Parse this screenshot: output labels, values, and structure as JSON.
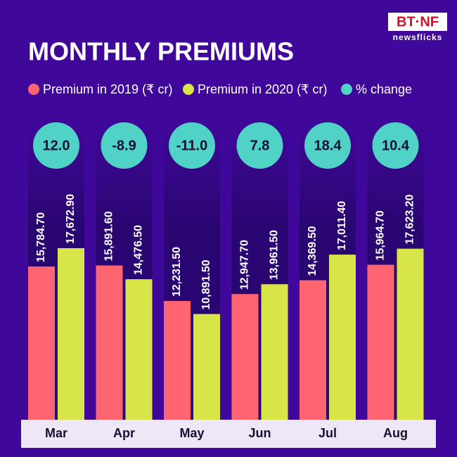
{
  "logo": {
    "brand": "BT·NF",
    "sub": "newsflicks"
  },
  "chart_data": {
    "type": "bar",
    "title": "MONTHLY PREMIUMS",
    "categories": [
      "Mar",
      "Apr",
      "May",
      "Jun",
      "Jul",
      "Aug"
    ],
    "series": [
      {
        "name": "Premium in 2019 (₹ cr)",
        "color": "#ff6570",
        "values": [
          15784.7,
          15891.6,
          12231.5,
          12947.7,
          14369.5,
          15964.7
        ],
        "value_labels": [
          "15,784.70",
          "15,891.60",
          "12,231.50",
          "12,947.70",
          "14,369.50",
          "15,964.70"
        ]
      },
      {
        "name": "Premium in 2020 (₹ cr)",
        "color": "#d7e548",
        "values": [
          17672.9,
          14476.5,
          10891.5,
          13961.5,
          17011.4,
          17623.2
        ],
        "value_labels": [
          "17,672.90",
          "14,476.50",
          "10,891.50",
          "13,961.50",
          "17,011.40",
          "17,623.20"
        ]
      },
      {
        "name": "% change",
        "color": "#50d2c6",
        "values": [
          12.0,
          -8.9,
          -11.0,
          7.8,
          18.4,
          10.4
        ],
        "value_labels": [
          "12.0",
          "-8.9",
          "-11.0",
          "7.8",
          "18.4",
          "10.4"
        ]
      }
    ]
  }
}
